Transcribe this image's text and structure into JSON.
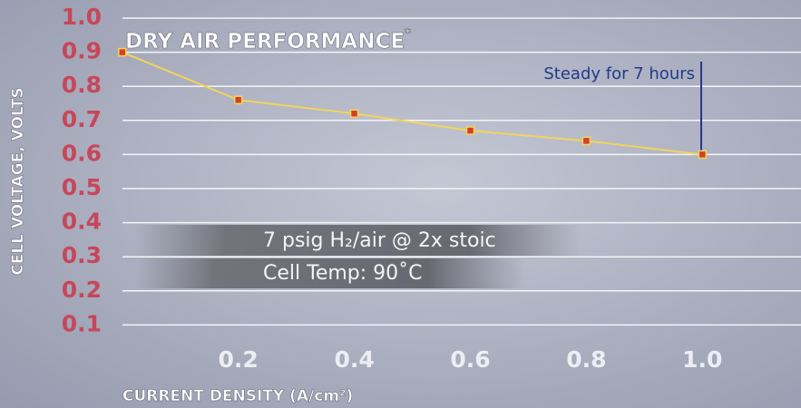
{
  "chart_data": {
    "type": "line",
    "title": "DRY AIR PERFORMANCE",
    "title_note": "*",
    "x_label": "CURRENT DENSITY (A/cm²)",
    "y_label": "CELL VOLTAGE, VOLTS",
    "annotations": [
      "Steady for 7 hours",
      "7 psig H₂/air @ 2x stoic",
      "Cell Temp: 90˚C"
    ],
    "x": [
      0,
      0.2,
      0.4,
      0.6,
      0.8,
      1.0
    ],
    "series": [
      {
        "name": "Cell voltage",
        "color": "#f2d45c",
        "marker_color": "#d2402a",
        "values": [
          0.9,
          0.76,
          0.72,
          0.67,
          0.64,
          0.6
        ]
      }
    ],
    "xlim": [
      -0.02,
      1.17
    ],
    "ylim": [
      0,
      1.0
    ],
    "xticks": [
      0.2,
      0.4,
      0.6,
      0.8,
      {
        "value": 1.0,
        "label": "1.0"
      }
    ],
    "yticks": [
      0.1,
      0.2,
      0.3,
      0.4,
      0.5,
      0.6,
      0.7,
      0.8,
      0.9,
      {
        "value": 1.0,
        "label": "1.0"
      }
    ],
    "grid": true
  }
}
